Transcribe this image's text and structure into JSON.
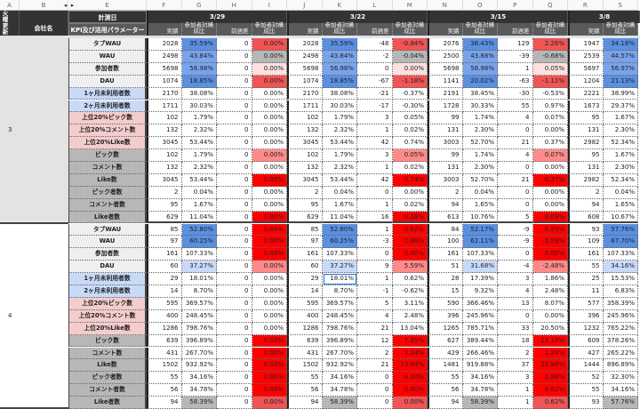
{
  "column_headers": [
    "A",
    "B",
    "E",
    "F",
    "G",
    "H",
    "I",
    "J",
    "K",
    "L",
    "M",
    "N",
    "O",
    "P",
    "Q",
    "R",
    "S"
  ],
  "header": {
    "update_col": "火曜更新",
    "company_col": "会社名",
    "measure_date": "計測日",
    "kpi_col": "KPI及び活用パラメーター",
    "dates": [
      "3/29",
      "3/22",
      "3/15",
      "3/8"
    ],
    "subcols": [
      "実績",
      "参加者対構\n成比",
      "前週差",
      "参加者対構\n成比"
    ]
  },
  "colors": {
    "b1": "#5b8fe0",
    "b2": "#7aa3ea",
    "lb": "#c9daf8",
    "r": "#ff0000",
    "r2": "#f05454",
    "pr": "#ff8a8a",
    "lp": "#fde0e0",
    "g": "#b7b7b7",
    "label_default": "#efefef",
    "label_blue": "#c9daf8",
    "label_pink": "#f4cccc",
    "label_grey": "#b7b7b7"
  },
  "groups": [
    {
      "id": "3",
      "rows": [
        {
          "label": "タブWAU",
          "lc": "label_default",
          "fill": [
            "b1",
            "r2"
          ],
          "values": [
            "2028",
            "35.59%",
            "0",
            "0.00%",
            "2028",
            "35.59%",
            "-48",
            "-0.84%",
            "2076",
            "36.43%",
            "129",
            "2.26%",
            "1947",
            "34.18%"
          ]
        },
        {
          "label": "WAU",
          "lc": "label_default",
          "fill": [
            "b2",
            "g"
          ],
          "values": [
            "2498",
            "43.84%",
            "0",
            "0.00%",
            "2498",
            "43.84%",
            "-2",
            "-0.04%",
            "2500",
            "43.88%",
            "-39",
            "-0.68%",
            "2539",
            "44.57%"
          ]
        },
        {
          "label": "参加者数",
          "lc": "label_default",
          "fill": [
            "b2",
            "lp"
          ],
          "values": [
            "5698",
            "56.98%",
            "0",
            "0.00%",
            "5698",
            "56.98%",
            "0",
            "0.00%",
            "5698",
            "56.98%",
            "1",
            "0.05%",
            "5697",
            "56.97%"
          ]
        },
        {
          "label": "DAU",
          "lc": "label_default",
          "fill": [
            "b1",
            "r2"
          ],
          "values": [
            "1074",
            "18.85%",
            "0",
            "0.00%",
            "1074",
            "18.85%",
            "-67",
            "-1.18%",
            "1141",
            "20.02%",
            "-63",
            "-1.11%",
            "1204",
            "21.13%"
          ]
        },
        {
          "label": "1ヶ月未利用者数",
          "lc": "label_blue",
          "fill": [
            "",
            ""
          ],
          "values": [
            "2170",
            "38.08%",
            "0",
            "0.00%",
            "2170",
            "38.08%",
            "-21",
            "-0.37%",
            "2191",
            "38.45%",
            "-30",
            "-0.53%",
            "2221",
            "38.99%"
          ]
        },
        {
          "label": "2ヶ月未利用者数",
          "lc": "label_blue",
          "fill": [
            "",
            ""
          ],
          "values": [
            "1711",
            "30.03%",
            "0",
            "0.00%",
            "1711",
            "30.03%",
            "-17",
            "-0.30%",
            "1728",
            "30.33%",
            "55",
            "0.97%",
            "1673",
            "29.37%"
          ]
        },
        {
          "label": "上位20%ピック数",
          "lc": "label_pink",
          "fill": [
            "",
            ""
          ],
          "values": [
            "102",
            "1.79%",
            "0",
            "0.00%",
            "102",
            "1.79%",
            "3",
            "0.05%",
            "99",
            "1.74%",
            "4",
            "0.07%",
            "95",
            "1.67%"
          ]
        },
        {
          "label": "上位20%コメント数",
          "lc": "label_pink",
          "fill": [
            "",
            ""
          ],
          "values": [
            "132",
            "2.32%",
            "0",
            "0.00%",
            "132",
            "2.32%",
            "1",
            "0.02%",
            "131",
            "2.30%",
            "0",
            "0.00%",
            "131",
            "2.30%"
          ]
        },
        {
          "label": "上位20%Like数",
          "lc": "label_pink",
          "fill": [
            "",
            ""
          ],
          "values": [
            "3045",
            "53.44%",
            "0",
            "0.00%",
            "3045",
            "53.44%",
            "42",
            "0.74%",
            "3003",
            "52.70%",
            "21",
            "0.37%",
            "2982",
            "52.34%"
          ]
        },
        {
          "label": "ピック数",
          "lc": "label_grey",
          "fill": [
            "",
            "pr"
          ],
          "values": [
            "102",
            "1.79%",
            "0",
            "0.00%",
            "102",
            "1.79%",
            "3",
            "0.05%",
            "99",
            "1.74%",
            "4",
            "0.07%",
            "95",
            "1.67%"
          ]
        },
        {
          "label": "コメント数",
          "lc": "label_grey",
          "fill": [
            "",
            ""
          ],
          "values": [
            "132",
            "2.32%",
            "0",
            "0.00%",
            "132",
            "2.32%",
            "1",
            "0.02%",
            "131",
            "2.30%",
            "0",
            "0.00%",
            "131",
            "2.30%"
          ]
        },
        {
          "label": "Like数",
          "lc": "label_grey",
          "fill": [
            "",
            "r"
          ],
          "values": [
            "3045",
            "53.44%",
            "0",
            "0.00%",
            "3045",
            "53.44%",
            "42",
            "0.74%",
            "3003",
            "52.70%",
            "21",
            "0.37%",
            "2982",
            "52.34%"
          ]
        },
        {
          "label": "ピック者数",
          "lc": "label_grey",
          "fill": [
            "",
            ""
          ],
          "values": [
            "2",
            "0.04%",
            "0",
            "0.00%",
            "2",
            "0.04%",
            "0",
            "0.00%",
            "2",
            "0.04%",
            "0",
            "0.00%",
            "2",
            "0.04%"
          ]
        },
        {
          "label": "コメント者数",
          "lc": "label_grey",
          "fill": [
            "",
            ""
          ],
          "values": [
            "95",
            "1.67%",
            "0",
            "0.00%",
            "95",
            "1.67%",
            "1",
            "0.02%",
            "94",
            "1.65%",
            "0",
            "0.00%",
            "94",
            "1.65%"
          ]
        },
        {
          "label": "Like者数",
          "lc": "label_grey",
          "fill": [
            "",
            "r"
          ],
          "values": [
            "629",
            "11.04%",
            "0",
            "0.00%",
            "629",
            "11.04%",
            "16",
            "0.28%",
            "613",
            "10.76%",
            "5",
            "0.09%",
            "608",
            "10.67%"
          ]
        }
      ]
    },
    {
      "id": "4",
      "rows": [
        {
          "label": "タブWAU",
          "lc": "label_default",
          "fill": [
            "b1",
            "r"
          ],
          "values": [
            "85",
            "52.80%",
            "0",
            "0.00%",
            "85",
            "52.80%",
            "1",
            "0.62%",
            "84",
            "52.17%",
            "-9",
            "-5.59%",
            "93",
            "57.76%"
          ]
        },
        {
          "label": "WAU",
          "lc": "label_default",
          "fill": [
            "b1",
            "r"
          ],
          "values": [
            "97",
            "60.25%",
            "0",
            "0.00%",
            "97",
            "60.25%",
            "-3",
            "-1.86%",
            "100",
            "62.11%",
            "-9",
            "-5.59%",
            "109",
            "67.70%"
          ]
        },
        {
          "label": "参加者数",
          "lc": "label_default",
          "fill": [
            "",
            "r"
          ],
          "values": [
            "161",
            "107.33%",
            "0",
            "0.00%",
            "161",
            "107.33%",
            "0",
            "0.00%",
            "161",
            "107.33%",
            "0",
            "0.00%",
            "161",
            "107.33%"
          ]
        },
        {
          "label": "DAU",
          "lc": "label_default",
          "fill": [
            "lb",
            "pr"
          ],
          "values": [
            "60",
            "37.27%",
            "0",
            "0.00%",
            "60",
            "37.27%",
            "9",
            "5.59%",
            "51",
            "31.68%",
            "-4",
            "-2.48%",
            "55",
            "34.16%"
          ]
        },
        {
          "label": "1ヶ月未利用者数",
          "lc": "label_blue",
          "fill": [
            "",
            ""
          ],
          "values": [
            "29",
            "18.01%",
            "0",
            "0.00%",
            "29",
            "18.01%",
            "1",
            "0.62%",
            "28",
            "17.39%",
            "3",
            "1.86%",
            "25",
            "15.53%"
          ]
        },
        {
          "label": "2ヶ月未利用者数",
          "lc": "label_blue",
          "fill": [
            "",
            ""
          ],
          "values": [
            "14",
            "8.70%",
            "0",
            "0.00%",
            "14",
            "8.70%",
            "-1",
            "-0.62%",
            "15",
            "9.32%",
            "4",
            "2.48%",
            "11",
            "6.83%"
          ]
        },
        {
          "label": "上位20%ピック数",
          "lc": "label_pink",
          "fill": [
            "",
            ""
          ],
          "values": [
            "595",
            "369.57%",
            "0",
            "0.00%",
            "595",
            "369.57%",
            "5",
            "3.11%",
            "590",
            "366.46%",
            "13",
            "8.07%",
            "577",
            "358.39%"
          ]
        },
        {
          "label": "上位20%コメント数",
          "lc": "label_pink",
          "fill": [
            "",
            ""
          ],
          "values": [
            "400",
            "248.45%",
            "0",
            "0.00%",
            "400",
            "248.45%",
            "4",
            "2.48%",
            "396",
            "245.96%",
            "0",
            "0.00%",
            "396",
            "245.96%"
          ]
        },
        {
          "label": "上位20%Like数",
          "lc": "label_pink",
          "fill": [
            "",
            ""
          ],
          "values": [
            "1286",
            "798.76%",
            "0",
            "0.00%",
            "1286",
            "798.76%",
            "21",
            "13.04%",
            "1265",
            "785.71%",
            "33",
            "20.50%",
            "1232",
            "765.22%"
          ]
        },
        {
          "label": "ピック数",
          "lc": "label_grey",
          "fill": [
            "",
            "r"
          ],
          "values": [
            "639",
            "396.89%",
            "0",
            "0.00%",
            "639",
            "396.89%",
            "12",
            "7.45%",
            "627",
            "389.44%",
            "18",
            "11.18%",
            "609",
            "378.26%"
          ]
        },
        {
          "label": "コメント数",
          "lc": "label_grey",
          "fill": [
            "",
            "r"
          ],
          "values": [
            "431",
            "267.70%",
            "0",
            "0.00%",
            "431",
            "267.70%",
            "2",
            "1.24%",
            "429",
            "266.46%",
            "2",
            "1.24%",
            "427",
            "265.22%"
          ]
        },
        {
          "label": "Like数",
          "lc": "label_grey",
          "fill": [
            "",
            "r"
          ],
          "values": [
            "1502",
            "932.92%",
            "0",
            "0.00%",
            "1502",
            "932.92%",
            "21",
            "13.04%",
            "1481",
            "919.88%",
            "37",
            "22.98%",
            "1444",
            "896.89%"
          ]
        },
        {
          "label": "ピック者数",
          "lc": "label_grey",
          "fill": [
            "",
            "r"
          ],
          "values": [
            "55",
            "34.16%",
            "0",
            "0.00%",
            "55",
            "34.16%",
            "0",
            "0.00%",
            "55",
            "34.16%",
            "3",
            "1.86%",
            "52",
            "32.30%"
          ]
        },
        {
          "label": "コメント者数",
          "lc": "label_grey",
          "fill": [
            "",
            "r"
          ],
          "values": [
            "56",
            "34.78%",
            "0",
            "0.00%",
            "56",
            "34.78%",
            "0",
            "0.00%",
            "56",
            "34.78%",
            "1",
            "0.62%",
            "55",
            "34.16%"
          ]
        },
        {
          "label": "Like者数",
          "lc": "label_grey",
          "fill": [
            "g",
            "r2"
          ],
          "values": [
            "94",
            "58.39%",
            "0",
            "0.00%",
            "94",
            "58.39%",
            "0",
            "0.00%",
            "94",
            "58.39%",
            "1",
            "0.62%",
            "93",
            "57.76%"
          ]
        }
      ]
    }
  ]
}
